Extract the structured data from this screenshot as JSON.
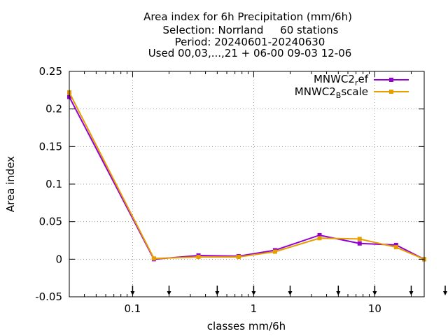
{
  "chart_data": {
    "type": "line",
    "title_lines": [
      "Area index  for 6h Precipitation (mm/6h)",
      "Selection: Norrland     60 stations",
      "Period: 20240601-20240630",
      "Used 00,03,...,21 + 06-00 09-03 12-06"
    ],
    "xlabel": "classes mm/6h",
    "ylabel": "Area index",
    "x_scale": "log",
    "xlim": [
      0.03,
      25.6
    ],
    "ylim": [
      -0.05,
      0.25
    ],
    "y_ticks": [
      -0.05,
      0,
      0.05,
      0.1,
      0.15,
      0.2,
      0.25
    ],
    "y_tick_labels": [
      "-0.05",
      "0",
      "0.05",
      "0.1",
      "0.15",
      "0.2",
      "0.25"
    ],
    "x_ticks": [
      0.1,
      1,
      10
    ],
    "x_tick_labels": [
      "0.1",
      "1",
      "10"
    ],
    "grid": true,
    "legend_position": "top-right",
    "class_marker_x": [
      0.1,
      0.2,
      0.5,
      1,
      2,
      5,
      10,
      20,
      50
    ],
    "series": [
      {
        "name": "MNWC2",
        "name_sub": "r",
        "name_rest": "ef",
        "color": "#9400d3",
        "x": [
          0.03,
          0.15,
          0.35,
          0.75,
          1.5,
          3.5,
          7.5,
          15,
          25.6
        ],
        "values": [
          0.216,
          0.0,
          0.005,
          0.004,
          0.012,
          0.032,
          0.021,
          0.019,
          0.0
        ]
      },
      {
        "name": "MNWC2",
        "name_sub": "B",
        "name_rest": "scale",
        "color": "#e69f00",
        "x": [
          0.03,
          0.15,
          0.35,
          0.75,
          1.5,
          3.5,
          7.5,
          15,
          25.6
        ],
        "values": [
          0.222,
          0.001,
          0.003,
          0.003,
          0.01,
          0.028,
          0.027,
          0.016,
          0.0
        ]
      }
    ]
  }
}
